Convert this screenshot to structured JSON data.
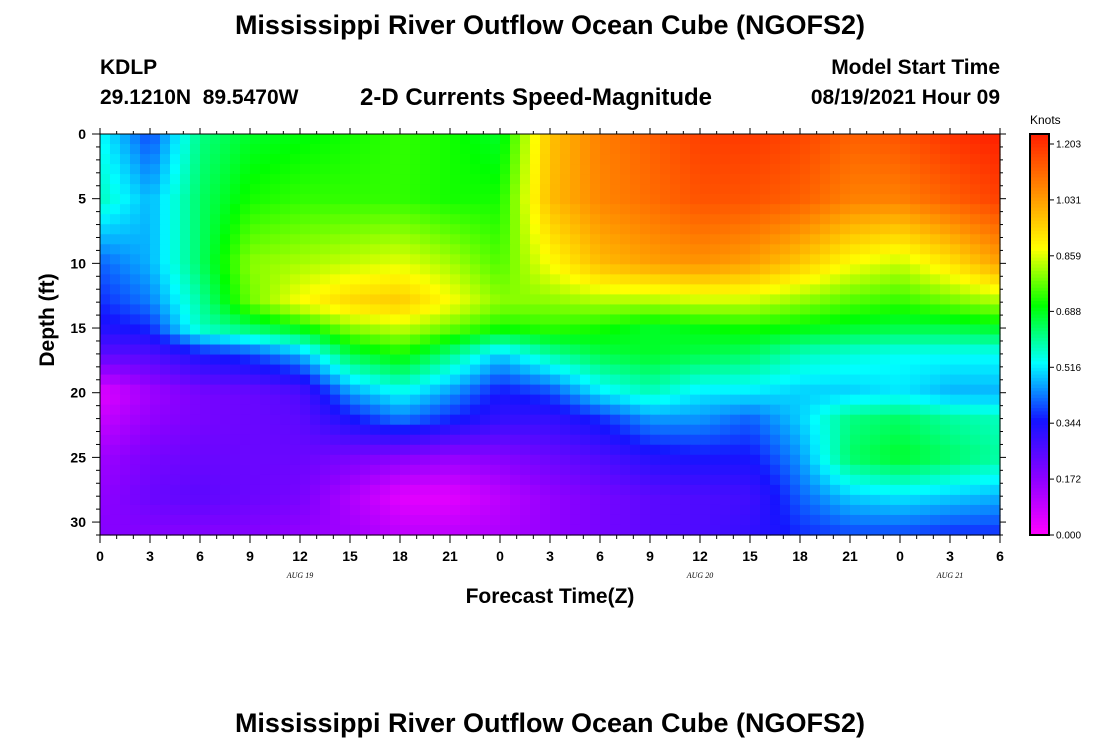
{
  "header": {
    "title": "Mississippi River Outflow Ocean Cube (NGOFS2)",
    "station_id": "KDLP",
    "station_coords": "29.1210N  89.5470W",
    "subtitle": "2-D Currents Speed-Magnitude",
    "model_start_label": "Model Start Time",
    "model_start_value": "08/19/2021 Hour 09"
  },
  "footer": {
    "title": "Mississippi River Outflow Ocean Cube (NGOFS2)"
  },
  "chart_data": {
    "type": "heatmap",
    "title": "2-D Currents Speed-Magnitude",
    "xlabel": "Forecast Time(Z)",
    "ylabel": "Depth (ft)",
    "colorbar_label": "Knots",
    "x_range_hours": [
      0,
      54
    ],
    "x_tick_labels": [
      "0",
      "3",
      "6",
      "9",
      "12",
      "15",
      "18",
      "21",
      "0",
      "3",
      "6",
      "9",
      "12",
      "15",
      "18",
      "21",
      "0",
      "3",
      "6"
    ],
    "date_labels": [
      {
        "label": "AUG  19",
        "hour": 12
      },
      {
        "label": "AUG  20",
        "hour": 36
      },
      {
        "label": "AUG  21",
        "hour": 51
      }
    ],
    "y_range": [
      0,
      31
    ],
    "y_inverted": true,
    "y_tick_labels": [
      "0",
      "5",
      "10",
      "15",
      "20",
      "25",
      "30"
    ],
    "color_scale": {
      "min": 0.0,
      "max": 1.203,
      "tick_labels": [
        "0.000",
        "0.172",
        "0.344",
        "0.516",
        "0.688",
        "0.859",
        "1.031",
        "1.203"
      ],
      "stops": [
        "#ff00ff",
        "#8b00ff",
        "#1414ff",
        "#00ffff",
        "#00ff00",
        "#ffff00",
        "#ff8c00",
        "#ff1e00"
      ]
    },
    "depths": [
      0,
      5,
      10,
      13,
      15,
      17,
      20,
      22,
      25,
      28,
      31
    ],
    "times": [
      0,
      3,
      6,
      9,
      12,
      15,
      18,
      21,
      24,
      27,
      30,
      33,
      36,
      39,
      42,
      45,
      48,
      51,
      54
    ],
    "values": [
      [
        0.52,
        0.38,
        0.6,
        0.66,
        0.68,
        0.7,
        0.72,
        0.7,
        0.66,
        0.95,
        1.05,
        1.1,
        1.15,
        1.16,
        1.14,
        1.1,
        1.12,
        1.17,
        1.2
      ],
      [
        0.56,
        0.46,
        0.62,
        0.7,
        0.72,
        0.72,
        0.72,
        0.7,
        0.7,
        0.96,
        1.04,
        1.08,
        1.12,
        1.12,
        1.1,
        1.05,
        1.05,
        1.1,
        1.15
      ],
      [
        0.4,
        0.46,
        0.62,
        0.78,
        0.8,
        0.82,
        0.84,
        0.8,
        0.74,
        0.86,
        0.96,
        1.0,
        1.02,
        1.0,
        0.94,
        0.86,
        0.82,
        0.9,
        1.0
      ],
      [
        0.36,
        0.42,
        0.58,
        0.76,
        0.86,
        0.92,
        0.94,
        0.86,
        0.78,
        0.78,
        0.8,
        0.8,
        0.82,
        0.82,
        0.78,
        0.74,
        0.72,
        0.76,
        0.8
      ],
      [
        0.32,
        0.36,
        0.56,
        0.62,
        0.68,
        0.78,
        0.82,
        0.76,
        0.7,
        0.72,
        0.7,
        0.66,
        0.68,
        0.7,
        0.68,
        0.66,
        0.64,
        0.64,
        0.66
      ],
      [
        0.24,
        0.26,
        0.34,
        0.38,
        0.46,
        0.64,
        0.7,
        0.6,
        0.48,
        0.58,
        0.64,
        0.66,
        0.64,
        0.62,
        0.56,
        0.54,
        0.52,
        0.52,
        0.52
      ],
      [
        0.04,
        0.14,
        0.2,
        0.22,
        0.26,
        0.44,
        0.52,
        0.44,
        0.34,
        0.38,
        0.5,
        0.56,
        0.5,
        0.5,
        0.48,
        0.48,
        0.5,
        0.46,
        0.46
      ],
      [
        0.08,
        0.16,
        0.2,
        0.22,
        0.24,
        0.34,
        0.42,
        0.36,
        0.3,
        0.3,
        0.36,
        0.44,
        0.44,
        0.4,
        0.48,
        0.6,
        0.62,
        0.58,
        0.56
      ],
      [
        0.14,
        0.2,
        0.22,
        0.22,
        0.22,
        0.2,
        0.18,
        0.16,
        0.18,
        0.22,
        0.26,
        0.32,
        0.34,
        0.34,
        0.44,
        0.62,
        0.66,
        0.62,
        0.58
      ],
      [
        0.16,
        0.22,
        0.24,
        0.22,
        0.2,
        0.12,
        0.04,
        0.04,
        0.1,
        0.16,
        0.2,
        0.24,
        0.26,
        0.28,
        0.4,
        0.48,
        0.5,
        0.48,
        0.46
      ],
      [
        0.18,
        0.18,
        0.18,
        0.18,
        0.16,
        0.14,
        0.1,
        0.1,
        0.12,
        0.16,
        0.2,
        0.24,
        0.26,
        0.3,
        0.36,
        0.38,
        0.38,
        0.36,
        0.36
      ]
    ]
  }
}
